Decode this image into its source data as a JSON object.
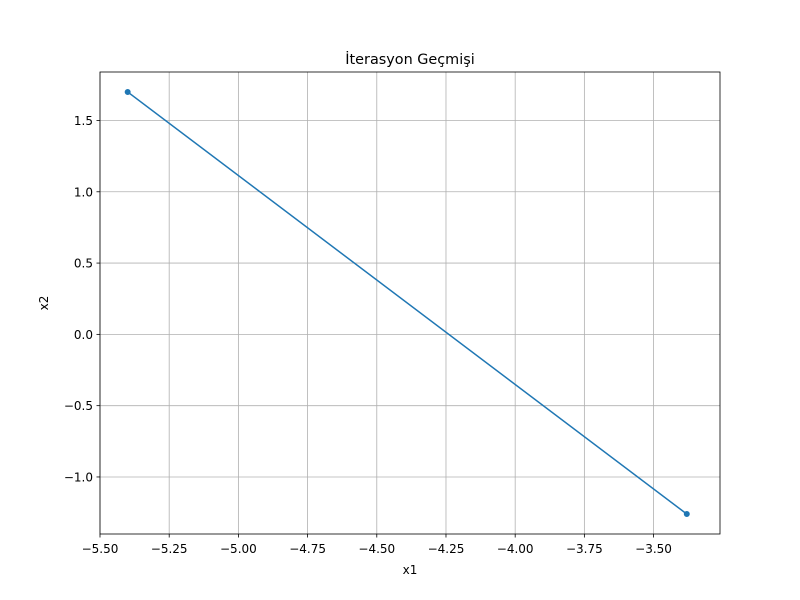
{
  "chart_data": {
    "type": "line",
    "title": "İterasyon Geçmişi",
    "xlabel": "x1",
    "ylabel": "x2",
    "xlim": [
      -5.5,
      -3.26
    ],
    "ylim": [
      -1.4,
      1.84
    ],
    "xticks": [
      -5.5,
      -5.25,
      -5.0,
      -4.75,
      -4.5,
      -4.25,
      -4.0,
      -3.75,
      -3.5
    ],
    "xtick_labels": [
      "−5.50",
      "−5.25",
      "−5.00",
      "−4.75",
      "−4.50",
      "−4.25",
      "−4.00",
      "−3.75",
      "−3.50"
    ],
    "yticks": [
      -1.0,
      -0.5,
      0.0,
      0.5,
      1.0,
      1.5
    ],
    "ytick_labels": [
      "−1.0",
      "−0.5",
      "0.0",
      "0.5",
      "1.0",
      "1.5"
    ],
    "grid": true,
    "series": [
      {
        "x": [
          -5.4,
          -3.38
        ],
        "y": [
          1.7,
          -1.26
        ],
        "color": "#1f77b4",
        "marker": "circle"
      }
    ]
  }
}
